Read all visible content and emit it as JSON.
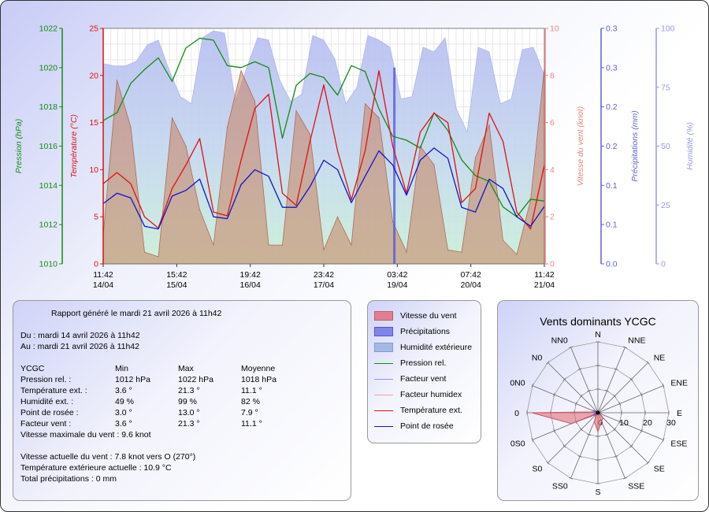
{
  "chart_data": {
    "type": "line",
    "x_tick_labels": [
      [
        "11:42",
        "14/04"
      ],
      [
        "15:42",
        "15/04"
      ],
      [
        "19:42",
        "16/04"
      ],
      [
        "23:42",
        "17/04"
      ],
      [
        "03:42",
        "19/04"
      ],
      [
        "07:42",
        "20/04"
      ],
      [
        "11:42",
        "21/04"
      ]
    ],
    "axes": {
      "pressure": {
        "label": "Pression (hPa)",
        "min": 1010,
        "max": 1022,
        "ticks": [
          1010,
          1012,
          1014,
          1016,
          1018,
          1020,
          1022
        ],
        "color": "#128c12"
      },
      "temperature": {
        "label": "Température (°C)",
        "min": 0,
        "max": 25,
        "ticks": [
          0,
          5,
          10,
          15,
          20,
          25
        ],
        "color": "#dd1111"
      },
      "wind": {
        "label": "Vitesse du vent (knot)",
        "min": 0,
        "max": 10,
        "ticks": [
          0,
          2,
          4,
          6,
          8,
          10
        ],
        "color": "#f08080"
      },
      "rain": {
        "label": "Précipitations (mm)",
        "min": 0,
        "max": 0.3,
        "ticks": [
          "0.0",
          "0.1",
          "0.1",
          "0.2",
          "0.2",
          "0.3",
          "0.3"
        ],
        "color": "#6060d0"
      },
      "humidity": {
        "label": "Humidité (%)",
        "min": 0,
        "max": 100,
        "ticks": [
          0,
          25,
          50,
          75,
          100
        ],
        "color": "#9898e8"
      }
    },
    "series": [
      {
        "name": "Humidité extérieure",
        "axis": "humidity",
        "color": "#9fa8e6",
        "values": [
          85,
          84,
          84,
          86,
          93,
          95,
          82,
          71,
          68,
          96,
          99,
          98,
          69,
          83,
          96,
          95,
          78,
          69,
          72,
          97,
          95,
          87,
          68,
          75,
          97,
          95,
          92,
          70,
          71,
          92,
          90,
          96,
          66,
          56,
          92,
          90,
          68,
          70,
          91,
          92,
          80
        ]
      },
      {
        "name": "Pression rel.",
        "axis": "pressure",
        "color": "#128c12",
        "values": [
          1017.3,
          1017.7,
          1019.2,
          1019.9,
          1020.5,
          1019.3,
          1021.0,
          1021.5,
          1021.4,
          1020.1,
          1020.0,
          1020.3,
          1020.0,
          1016.4,
          1019.1,
          1019.7,
          1019.5,
          1018.6,
          1020.1,
          1019.8,
          1017.9,
          1016.5,
          1016.3,
          1015.9,
          1017.7,
          1016.8,
          1015.3,
          1014.5,
          1014.2,
          1012.9,
          1012.4,
          1013.3,
          1013.2
        ]
      },
      {
        "name": "Température ext.",
        "axis": "temperature",
        "color": "#dd1111",
        "values": [
          8.5,
          9.7,
          8.5,
          5.0,
          3.8,
          8.0,
          10.5,
          13.3,
          5.5,
          5.1,
          11.0,
          16.5,
          18.0,
          7.5,
          6.2,
          13.0,
          19.0,
          12.0,
          6.8,
          12.0,
          20.5,
          12.5,
          7.5,
          14.0,
          16.0,
          15.0,
          6.5,
          8.0,
          16.0,
          13.0,
          5.5,
          3.7,
          10.5
        ]
      },
      {
        "name": "Point de rosée",
        "axis": "temperature",
        "color": "#1414c8",
        "values": [
          6.4,
          7.5,
          7.0,
          4.0,
          3.7,
          7.2,
          7.8,
          9.0,
          5.0,
          4.8,
          8.4,
          10.0,
          9.3,
          6.0,
          6.0,
          8.2,
          11.0,
          10.0,
          6.5,
          9.3,
          12.0,
          10.5,
          7.3,
          11.0,
          12.3,
          11.2,
          6.0,
          5.5,
          9.0,
          8.0,
          5.0,
          4.0,
          6.1
        ]
      },
      {
        "name": "Facteur humidex",
        "axis": "temperature",
        "color": "#f0a0a0",
        "values": []
      },
      {
        "name": "Facteur vent",
        "axis": "temperature",
        "color": "#9090e8",
        "values": []
      }
    ],
    "wind_speed": {
      "name": "Vitesse du vent",
      "axis": "wind",
      "color": "#e07080",
      "values": [
        1.2,
        7.8,
        5.8,
        0.5,
        0.3,
        6.2,
        5.0,
        2.3,
        0.8,
        5.8,
        8.2,
        6.9,
        0.8,
        0.8,
        6.5,
        5.5,
        0.6,
        2.0,
        0.8,
        6.8,
        6.2,
        1.8,
        0.5,
        5.0,
        4.2,
        0.6,
        0.5,
        4.5,
        5.9,
        1.0,
        0.4,
        2.7,
        8.3
      ]
    },
    "precipitation": {
      "name": "Précipitations",
      "axis": "rain",
      "color": "#5050e0",
      "bar_at_fraction": 0.66,
      "value": 0.25
    },
    "legend": [
      {
        "label": "Vitesse du vent",
        "kind": "fill",
        "color": "#e07f94",
        "border": "#c05a70"
      },
      {
        "label": "Précipitations",
        "kind": "fill",
        "color": "#7e86ec",
        "border": "#5058d0"
      },
      {
        "label": "Humidité extérieure",
        "kind": "fill",
        "color": "#a4b8e4",
        "border": "#7f9bd0"
      },
      {
        "label": "Pression rel.",
        "kind": "line",
        "color": "#128c12"
      },
      {
        "label": "Facteur vent",
        "kind": "line",
        "color": "#9090e8"
      },
      {
        "label": "Facteur humidex",
        "kind": "line",
        "color": "#f0a0a0"
      },
      {
        "label": "Température ext.",
        "kind": "line",
        "color": "#dd1111"
      },
      {
        "label": "Point de rosée",
        "kind": "line",
        "color": "#1414c8"
      }
    ]
  },
  "report": {
    "title": "Rapport généré le mardi 21 avril 2026 à 11h42",
    "from": "Du : mardi 14 avril 2026 à 11h42",
    "to": "Au : mardi 21 avril 2026 à 11h42",
    "station": "YCGC",
    "col_min": "Min",
    "col_max": "Max",
    "col_avg": "Moyenne",
    "rows": [
      {
        "label": "Pression rel. :",
        "min": "1012 hPa",
        "max": "1022 hPa",
        "avg": "1018 hPa"
      },
      {
        "label": "Température ext. :",
        "min": "3.6 °",
        "max": "21.3 °",
        "avg": "11.1 °"
      },
      {
        "label": "Humidité ext. :",
        "min": "49 %",
        "max": "99 %",
        "avg": "82 %"
      },
      {
        "label": "Point de rosée :",
        "min": "3.0 °",
        "max": "13.0 °",
        "avg": "7.9 °"
      },
      {
        "label": "Facteur vent :",
        "min": "3.6 °",
        "max": "21.3 °",
        "avg": "11.1 °"
      }
    ],
    "max_wind": "Vitesse maximale du vent : 9.6 knot",
    "current_wind": "Vitesse actuelle du vent : 7.8 knot vers  O (270°)",
    "current_temp": "Température extérieure actuelle :  10.9 °C",
    "total_rain": "Total précipitations :  0 mm"
  },
  "wind_rose": {
    "title": "Vents dominants YCGC",
    "directions": [
      "N",
      "NNE",
      "NE",
      "ENE",
      "E",
      "ESE",
      "SE",
      "SSE",
      "S",
      "SS0",
      "S0",
      "0S0",
      "0",
      "0N0",
      "N0",
      "NN0"
    ],
    "ring_labels": [
      "0",
      "10",
      "20",
      "30"
    ],
    "max": 30,
    "values": [
      1,
      0.5,
      0.5,
      0.5,
      0.5,
      1,
      3,
      4,
      8,
      4,
      1,
      12,
      28,
      1,
      0.5,
      0.5
    ],
    "fill_color": "#e0707c"
  }
}
